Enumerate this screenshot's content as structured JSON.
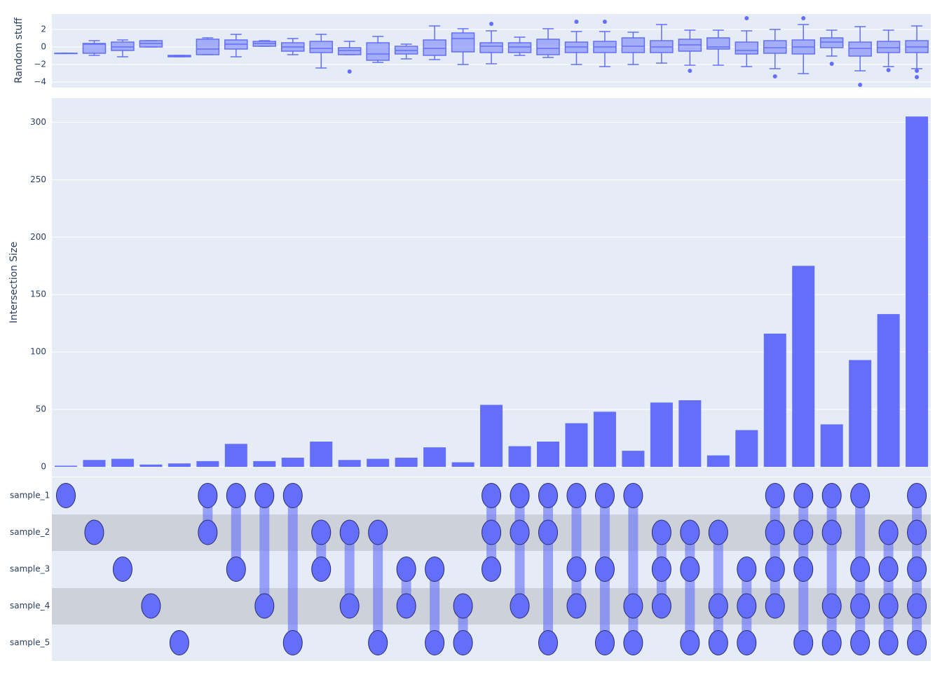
{
  "chart_data": {
    "type": "upset",
    "box_ylabel": "Random stuff",
    "box_ylim": [
      -4.64,
      3.76
    ],
    "box_yticks": [
      {
        "value": -4,
        "label": "−4"
      },
      {
        "value": -2,
        "label": "−2"
      },
      0,
      2
    ],
    "box_color": "#636efa",
    "boxes": [
      {
        "min": -0.72,
        "q1": -0.72,
        "median": -0.72,
        "q3": -0.72,
        "max": -0.72,
        "outliers": []
      },
      {
        "min": -0.96,
        "q1": -0.72,
        "median": 0.32,
        "q3": 0.4,
        "max": 0.72,
        "outliers": []
      },
      {
        "min": -1.12,
        "q1": -0.4,
        "median": 0,
        "q3": 0.56,
        "max": 0.8,
        "outliers": []
      },
      {
        "min": 0,
        "q1": 0,
        "median": 0.4,
        "q3": 0.72,
        "max": 0.72,
        "outliers": []
      },
      {
        "min": -1.12,
        "q1": -1.12,
        "median": -1.04,
        "q3": -0.96,
        "max": -0.96,
        "outliers": []
      },
      {
        "min": -0.88,
        "q1": -0.88,
        "median": -0.24,
        "q3": 0.88,
        "max": 1.04,
        "outliers": []
      },
      {
        "min": -1.12,
        "q1": -0.24,
        "median": 0.32,
        "q3": 0.8,
        "max": 1.44,
        "outliers": []
      },
      {
        "min": 0.08,
        "q1": 0.08,
        "median": 0.4,
        "q3": 0.64,
        "max": 0.72,
        "outliers": []
      },
      {
        "min": -0.88,
        "q1": -0.48,
        "median": 0,
        "q3": 0.48,
        "max": 0.96,
        "outliers": []
      },
      {
        "min": -2.4,
        "q1": -0.64,
        "median": -0.16,
        "q3": 0.64,
        "max": 1.44,
        "outliers": []
      },
      {
        "min": -0.88,
        "q1": -0.88,
        "median": -0.4,
        "q3": -0.08,
        "max": 0.64,
        "outliers": [
          -2.8
        ]
      },
      {
        "min": -1.76,
        "q1": -1.52,
        "median": -0.8,
        "q3": 0.48,
        "max": 1.2,
        "outliers": []
      },
      {
        "min": -1.36,
        "q1": -0.8,
        "median": -0.4,
        "q3": 0.08,
        "max": 0.32,
        "outliers": []
      },
      {
        "min": -1.44,
        "q1": -0.96,
        "median": -0.16,
        "q3": 0.8,
        "max": 2.4,
        "outliers": []
      },
      {
        "min": -2,
        "q1": -0.56,
        "median": 0.96,
        "q3": 1.6,
        "max": 2.08,
        "outliers": []
      },
      {
        "min": -1.92,
        "q1": -0.64,
        "median": 0.08,
        "q3": 0.48,
        "max": 1.84,
        "outliers": [
          2.64
        ]
      },
      {
        "min": -0.96,
        "q1": -0.64,
        "median": 0,
        "q3": 0.48,
        "max": 1.12,
        "outliers": []
      },
      {
        "min": -1.2,
        "q1": -0.88,
        "median": -0.16,
        "q3": 0.88,
        "max": 2.08,
        "outliers": []
      },
      {
        "min": -2,
        "q1": -0.64,
        "median": 0,
        "q3": 0.56,
        "max": 1.76,
        "outliers": [
          2.88
        ]
      },
      {
        "min": -2.24,
        "q1": -0.64,
        "median": 0,
        "q3": 0.64,
        "max": 1.76,
        "outliers": [
          2.88
        ]
      },
      {
        "min": -2,
        "q1": -0.64,
        "median": 0.08,
        "q3": 1.04,
        "max": 1.68,
        "outliers": []
      },
      {
        "min": -1.84,
        "q1": -0.64,
        "median": 0,
        "q3": 0.72,
        "max": 2.56,
        "outliers": []
      },
      {
        "min": -2.08,
        "q1": -0.48,
        "median": 0.24,
        "q3": 0.88,
        "max": 1.92,
        "outliers": [
          -2.72
        ]
      },
      {
        "min": -2.08,
        "q1": -0.24,
        "median": 0,
        "q3": 1.04,
        "max": 1.92,
        "outliers": []
      },
      {
        "min": -2.24,
        "q1": -0.8,
        "median": -0.4,
        "q3": 0.56,
        "max": 1.84,
        "outliers": [
          3.28
        ]
      },
      {
        "min": -2.48,
        "q1": -0.72,
        "median": -0.08,
        "q3": 0.72,
        "max": 2,
        "outliers": [
          -3.36
        ]
      },
      {
        "min": -3.04,
        "q1": -0.8,
        "median": 0,
        "q3": 0.8,
        "max": 2.56,
        "outliers": [
          3.28
        ]
      },
      {
        "min": -1.04,
        "q1": -0.08,
        "median": 0.56,
        "q3": 1.04,
        "max": 1.92,
        "outliers": [
          -1.92
        ]
      },
      {
        "min": -2.72,
        "q1": -1.04,
        "median": -0.16,
        "q3": 0.56,
        "max": 2.32,
        "outliers": [
          -4.32
        ]
      },
      {
        "min": -2.24,
        "q1": -0.64,
        "median": -0.08,
        "q3": 0.64,
        "max": 1.92,
        "outliers": [
          -2.64
        ]
      },
      {
        "min": -2.48,
        "q1": -0.64,
        "median": 0,
        "q3": 0.72,
        "max": 2.4,
        "outliers": [
          -2.72,
          -3.44
        ]
      }
    ],
    "bar_ylabel": "Intersection Size",
    "bar_ylim": [
      -8.5,
      321
    ],
    "bar_yticks": [
      0,
      50,
      100,
      150,
      200,
      250,
      300
    ],
    "bar_color": "#636efa",
    "values": [
      1,
      6,
      7,
      2,
      3,
      5,
      20,
      5,
      8,
      22,
      6,
      7,
      8,
      17,
      4,
      54,
      18,
      22,
      38,
      48,
      14,
      56,
      58,
      10,
      32,
      116,
      175,
      37,
      93,
      133,
      305
    ],
    "sets": [
      "sample_1",
      "sample_2",
      "sample_3",
      "sample_4",
      "sample_5"
    ],
    "intersections": [
      [
        0
      ],
      [
        1
      ],
      [
        2
      ],
      [
        3
      ],
      [
        4
      ],
      [
        0,
        1
      ],
      [
        0,
        2
      ],
      [
        0,
        3
      ],
      [
        0,
        4
      ],
      [
        1,
        2
      ],
      [
        1,
        3
      ],
      [
        1,
        4
      ],
      [
        2,
        3
      ],
      [
        2,
        4
      ],
      [
        3,
        4
      ],
      [
        0,
        1,
        2
      ],
      [
        0,
        1,
        3
      ],
      [
        0,
        1,
        4
      ],
      [
        0,
        2,
        3
      ],
      [
        0,
        2,
        4
      ],
      [
        0,
        3,
        4
      ],
      [
        1,
        2,
        3
      ],
      [
        1,
        2,
        4
      ],
      [
        1,
        3,
        4
      ],
      [
        2,
        3,
        4
      ],
      [
        0,
        1,
        2,
        3
      ],
      [
        0,
        1,
        2,
        4
      ],
      [
        0,
        1,
        3,
        4
      ],
      [
        0,
        2,
        3,
        4
      ],
      [
        1,
        2,
        3,
        4
      ],
      [
        0,
        1,
        2,
        3,
        4
      ]
    ],
    "grid": true
  }
}
